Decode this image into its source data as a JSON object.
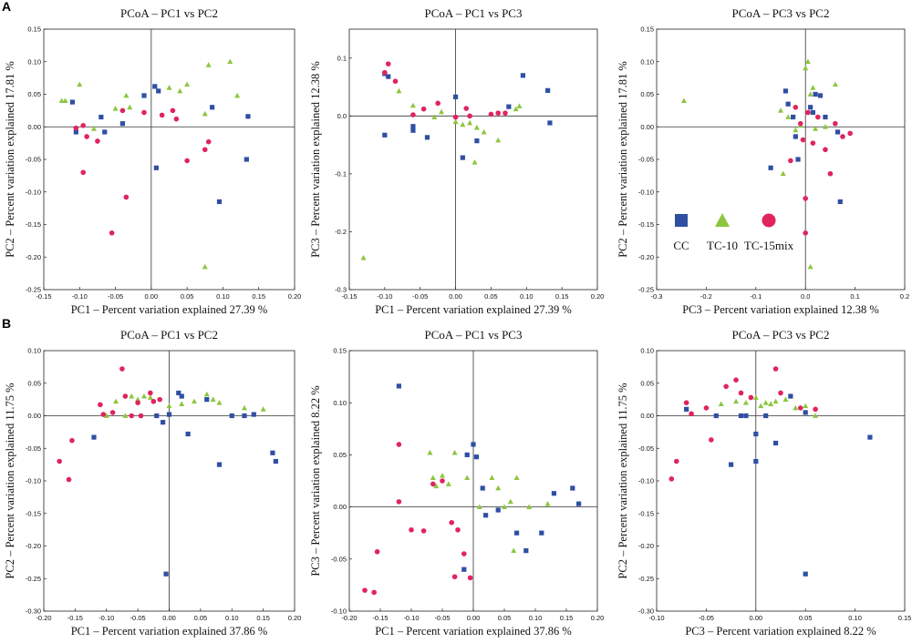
{
  "colors": {
    "CC": "#2f4fa3",
    "TC-10": "#8cc63f",
    "TC-15mix": "#e0245e"
  },
  "chart_data": [
    {
      "type": "scatter",
      "panel": "A",
      "title": "PCoA – PC1 vs PC2",
      "xlabel": "PC1 – Percent variation explained 27.39 %",
      "ylabel": "PC2 – Percent variation explained 17.81 %",
      "xlim": [
        -0.15,
        0.2
      ],
      "ylim": [
        -0.25,
        0.15
      ],
      "xticks": [
        -0.15,
        -0.1,
        -0.05,
        0.0,
        0.05,
        0.1,
        0.15,
        0.2
      ],
      "yticks": [
        -0.25,
        -0.2,
        -0.15,
        -0.1,
        -0.05,
        0.0,
        0.05,
        0.1,
        0.15
      ],
      "xtick_labels": [
        "-0.15",
        "-0.10",
        "-0.05",
        "0.00",
        "0.05",
        "0.10",
        "0.15",
        "0.20"
      ],
      "ytick_labels": [
        "-0.25",
        "-0.20",
        "-0.15",
        "-0.10",
        "-0.05",
        "0.00",
        "0.05",
        "0.10",
        "0.15"
      ],
      "series": [
        {
          "name": "CC",
          "x": [
            -0.11,
            -0.105,
            -0.07,
            -0.065,
            -0.04,
            -0.01,
            0.005,
            0.01,
            0.007,
            0.085,
            0.095,
            0.135,
            0.133
          ],
          "y": [
            0.038,
            -0.008,
            0.015,
            -0.008,
            0.005,
            0.048,
            0.062,
            0.055,
            -0.063,
            0.03,
            -0.115,
            0.016,
            -0.05
          ]
        },
        {
          "name": "TC-10",
          "x": [
            -0.125,
            -0.12,
            -0.1,
            -0.08,
            -0.05,
            -0.035,
            -0.03,
            0.025,
            0.04,
            0.05,
            0.075,
            0.08,
            0.11,
            0.12,
            0.075
          ],
          "y": [
            0.04,
            0.04,
            0.065,
            -0.003,
            0.028,
            0.048,
            0.03,
            0.06,
            0.055,
            0.065,
            0.02,
            0.095,
            0.1,
            0.048,
            -0.215
          ]
        },
        {
          "name": "TC-15mix",
          "x": [
            -0.105,
            -0.095,
            -0.09,
            -0.095,
            -0.075,
            -0.04,
            -0.055,
            -0.035,
            -0.01,
            0.015,
            0.03,
            0.035,
            0.05,
            0.075,
            0.08
          ],
          "y": [
            -0.002,
            0.002,
            -0.015,
            -0.07,
            -0.022,
            0.025,
            -0.163,
            -0.108,
            0.022,
            0.018,
            0.025,
            0.012,
            -0.052,
            -0.035,
            -0.023
          ]
        }
      ]
    },
    {
      "type": "scatter",
      "panel": "A",
      "title": "PCoA – PC1 vs PC3",
      "xlabel": "PC1 – Percent variation explained 27.39 %",
      "ylabel": "PC3 – Percent variation explained 12.38 %",
      "xlim": [
        -0.15,
        0.2
      ],
      "ylim": [
        -0.3,
        0.15
      ],
      "xticks": [
        -0.15,
        -0.1,
        -0.05,
        0.0,
        0.05,
        0.1,
        0.15,
        0.2
      ],
      "yticks": [
        -0.3,
        -0.2,
        -0.1,
        0.0,
        0.1
      ],
      "xtick_labels": [
        "-0.15",
        "-0.10",
        "-0.05",
        "0.00",
        "0.05",
        "0.10",
        "0.15",
        "0.20"
      ],
      "ytick_labels": [
        "-0.3",
        "-0.2",
        "-0.1",
        "0.0",
        "0.1"
      ],
      "series": [
        {
          "name": "CC",
          "x": [
            -0.1,
            -0.095,
            -0.06,
            -0.06,
            -0.04,
            0.0,
            0.01,
            0.03,
            0.075,
            0.095,
            0.13,
            0.133,
            -0.1
          ],
          "y": [
            0.073,
            0.068,
            -0.018,
            -0.025,
            -0.037,
            0.033,
            -0.072,
            -0.043,
            0.016,
            0.07,
            0.044,
            -0.012,
            -0.033
          ]
        },
        {
          "name": "TC-10",
          "x": [
            -0.13,
            -0.08,
            -0.06,
            -0.03,
            -0.02,
            0.0,
            0.01,
            0.02,
            0.03,
            0.04,
            0.06,
            0.085,
            0.09,
            0.027
          ],
          "y": [
            -0.245,
            0.043,
            0.018,
            -0.002,
            0.007,
            -0.01,
            -0.015,
            -0.012,
            -0.02,
            -0.028,
            -0.042,
            0.012,
            0.017,
            -0.08
          ]
        },
        {
          "name": "TC-15mix",
          "x": [
            -0.1,
            -0.095,
            -0.085,
            -0.06,
            -0.045,
            -0.025,
            0.0,
            0.015,
            0.02,
            0.05,
            0.06,
            0.07
          ],
          "y": [
            0.075,
            0.09,
            0.06,
            0.002,
            0.012,
            0.022,
            -0.002,
            0.013,
            0.0,
            0.003,
            0.005,
            0.005
          ]
        }
      ]
    },
    {
      "type": "scatter",
      "panel": "A",
      "title": "PCoA – PC3 vs PC2",
      "xlabel": "PC3 – Percent variation explained 12.38 %",
      "ylabel": "PC2 – Percent variation explained 17.81 %",
      "xlim": [
        -0.3,
        0.2
      ],
      "ylim": [
        -0.25,
        0.15
      ],
      "xticks": [
        -0.3,
        -0.2,
        -0.1,
        0.0,
        0.1,
        0.2
      ],
      "yticks": [
        -0.25,
        -0.2,
        -0.15,
        -0.1,
        -0.05,
        0.0,
        0.05,
        0.1,
        0.15
      ],
      "xtick_labels": [
        "-0.3",
        "-0.2",
        "-0.1",
        "0.0",
        "0.1",
        "0.2"
      ],
      "ytick_labels": [
        "-0.25",
        "-0.20",
        "-0.15",
        "-0.10",
        "-0.05",
        "0.00",
        "0.05",
        "0.10",
        "0.15"
      ],
      "series": [
        {
          "name": "CC",
          "x": [
            -0.07,
            -0.04,
            -0.035,
            -0.025,
            -0.02,
            -0.015,
            0.01,
            0.015,
            0.02,
            0.03,
            0.04,
            0.065,
            0.07
          ],
          "y": [
            -0.063,
            0.055,
            0.035,
            0.015,
            -0.015,
            -0.05,
            0.03,
            0.022,
            0.05,
            0.048,
            0.015,
            -0.008,
            -0.115
          ]
        },
        {
          "name": "TC-10",
          "x": [
            -0.245,
            -0.05,
            -0.035,
            -0.02,
            -0.01,
            0.0,
            0.005,
            0.01,
            0.015,
            0.02,
            0.04,
            0.06,
            0.01,
            -0.045
          ],
          "y": [
            0.04,
            0.025,
            0.015,
            -0.005,
            0.002,
            0.09,
            0.1,
            0.05,
            0.06,
            -0.003,
            0.0,
            0.065,
            -0.215,
            -0.072
          ]
        },
        {
          "name": "TC-15mix",
          "x": [
            -0.03,
            -0.02,
            -0.01,
            -0.005,
            0.0,
            0.005,
            0.015,
            0.025,
            0.04,
            0.05,
            0.06,
            0.075,
            0.09,
            0.0
          ],
          "y": [
            -0.052,
            0.03,
            0.005,
            -0.02,
            -0.11,
            0.022,
            -0.025,
            0.015,
            -0.035,
            -0.072,
            0.005,
            -0.015,
            -0.01,
            -0.163
          ]
        }
      ],
      "legend": {
        "entries": [
          "CC",
          "TC-10",
          "TC-15mix"
        ],
        "placement": "bottom-left"
      }
    },
    {
      "type": "scatter",
      "panel": "B",
      "title": "PCoA – PC1 vs PC2",
      "xlabel": "PC1 – Percent variation explained 37.86 %",
      "ylabel": "PC2 – Percent variation explained 11.75 %",
      "xlim": [
        -0.2,
        0.2
      ],
      "ylim": [
        -0.3,
        0.1
      ],
      "xticks": [
        -0.2,
        -0.15,
        -0.1,
        -0.05,
        0.0,
        0.05,
        0.1,
        0.15,
        0.2
      ],
      "yticks": [
        -0.3,
        -0.25,
        -0.2,
        -0.15,
        -0.1,
        -0.05,
        0.0,
        0.05,
        0.1
      ],
      "xtick_labels": [
        "-0.20",
        "-0.15",
        "-0.10",
        "-0.05",
        "0.00",
        "0.05",
        "0.10",
        "0.15",
        "0.20"
      ],
      "ytick_labels": [
        "-0.30",
        "-0.25",
        "-0.20",
        "-0.15",
        "-0.10",
        "-0.05",
        "0.00",
        "0.05",
        "0.10"
      ],
      "series": [
        {
          "name": "CC",
          "x": [
            -0.12,
            -0.02,
            -0.01,
            0.0,
            0.015,
            0.02,
            0.03,
            0.06,
            0.08,
            0.1,
            0.12,
            0.135,
            0.165,
            0.17,
            -0.005
          ],
          "y": [
            -0.033,
            0.0,
            -0.01,
            0.002,
            0.035,
            0.03,
            -0.028,
            0.025,
            -0.075,
            0.0,
            0.0,
            0.002,
            -0.057,
            -0.07,
            -0.243
          ]
        },
        {
          "name": "TC-10",
          "x": [
            -0.1,
            -0.085,
            -0.06,
            -0.05,
            -0.04,
            -0.03,
            0.0,
            0.02,
            0.04,
            0.06,
            0.07,
            0.08,
            0.12,
            0.15,
            -0.07
          ],
          "y": [
            0.0,
            0.022,
            0.03,
            0.025,
            0.03,
            0.028,
            0.015,
            0.018,
            0.022,
            0.033,
            0.025,
            0.02,
            0.012,
            0.01,
            0.0
          ]
        },
        {
          "name": "TC-15mix",
          "x": [
            -0.175,
            -0.16,
            -0.155,
            -0.11,
            -0.105,
            -0.09,
            -0.075,
            -0.07,
            -0.06,
            -0.05,
            -0.03,
            -0.025,
            -0.015,
            -0.045
          ],
          "y": [
            -0.07,
            -0.098,
            -0.038,
            0.017,
            0.002,
            0.005,
            0.072,
            0.03,
            0.0,
            0.02,
            0.035,
            0.022,
            0.025,
            0.0
          ]
        }
      ]
    },
    {
      "type": "scatter",
      "panel": "B",
      "title": "PCoA – PC1 vs PC3",
      "xlabel": "PC1 – Percent variation explained 37.86 %",
      "ylabel": "PC3 – Percent variation explained 8.22 %",
      "xlim": [
        -0.2,
        0.2
      ],
      "ylim": [
        -0.1,
        0.15
      ],
      "xticks": [
        -0.2,
        -0.15,
        -0.1,
        -0.05,
        0.0,
        0.05,
        0.1,
        0.15,
        0.2
      ],
      "yticks": [
        -0.1,
        -0.05,
        0.0,
        0.05,
        0.1,
        0.15
      ],
      "xtick_labels": [
        "-0.20",
        "-0.15",
        "-0.10",
        "-0.05",
        "0.00",
        "0.05",
        "0.10",
        "0.15",
        "0.20"
      ],
      "ytick_labels": [
        "-0.10",
        "-0.05",
        "0.00",
        "0.05",
        "0.10",
        "0.15"
      ],
      "series": [
        {
          "name": "CC",
          "x": [
            -0.12,
            -0.01,
            0.0,
            0.005,
            0.015,
            0.02,
            0.04,
            0.07,
            0.085,
            0.11,
            0.13,
            0.16,
            0.17,
            -0.015
          ],
          "y": [
            0.116,
            0.05,
            0.06,
            0.048,
            0.018,
            -0.008,
            -0.003,
            -0.025,
            -0.042,
            -0.025,
            0.013,
            0.018,
            0.003,
            -0.06
          ]
        },
        {
          "name": "TC-10",
          "x": [
            -0.07,
            -0.065,
            -0.05,
            -0.04,
            -0.06,
            -0.03,
            -0.01,
            0.01,
            0.03,
            0.04,
            0.05,
            0.06,
            0.07,
            0.09,
            0.12,
            0.065
          ],
          "y": [
            0.052,
            0.028,
            0.03,
            0.022,
            0.02,
            0.052,
            0.028,
            0.0,
            0.028,
            0.018,
            0.0,
            0.005,
            0.028,
            0.0,
            0.003,
            -0.042
          ]
        },
        {
          "name": "TC-15mix",
          "x": [
            -0.175,
            -0.16,
            -0.155,
            -0.12,
            -0.12,
            -0.1,
            -0.08,
            -0.065,
            -0.05,
            -0.035,
            -0.025,
            -0.015,
            -0.005,
            -0.03
          ],
          "y": [
            -0.08,
            -0.082,
            -0.043,
            0.06,
            0.005,
            -0.022,
            -0.023,
            0.022,
            0.025,
            -0.015,
            -0.022,
            -0.045,
            -0.068,
            -0.067
          ]
        }
      ]
    },
    {
      "type": "scatter",
      "panel": "B",
      "title": "PCoA – PC3 vs PC2",
      "xlabel": "PC3 – Percent variation explained 8.22 %",
      "ylabel": "PC2 – Percent variation explained 11.75 %",
      "xlim": [
        -0.1,
        0.15
      ],
      "ylim": [
        -0.3,
        0.1
      ],
      "xticks": [
        -0.1,
        -0.05,
        0.0,
        0.05,
        0.1,
        0.15
      ],
      "yticks": [
        -0.3,
        -0.25,
        -0.2,
        -0.15,
        -0.1,
        -0.05,
        0.0,
        0.05,
        0.1
      ],
      "xtick_labels": [
        "-0.10",
        "-0.05",
        "0.00",
        "0.05",
        "0.10",
        "0.15"
      ],
      "ytick_labels": [
        "-0.30",
        "-0.25",
        "-0.20",
        "-0.15",
        "-0.10",
        "-0.05",
        "0.00",
        "0.05",
        "0.10"
      ],
      "series": [
        {
          "name": "CC",
          "x": [
            -0.07,
            -0.04,
            -0.025,
            -0.015,
            -0.01,
            0.0,
            0.01,
            0.02,
            0.035,
            0.05,
            0.115,
            0.05,
            0.0
          ],
          "y": [
            0.01,
            0.0,
            -0.075,
            0.0,
            0.0,
            -0.07,
            0.0,
            -0.042,
            0.03,
            0.005,
            -0.033,
            -0.243,
            -0.028
          ]
        },
        {
          "name": "TC-10",
          "x": [
            -0.035,
            -0.02,
            -0.01,
            0.0,
            0.005,
            0.01,
            0.015,
            0.02,
            0.03,
            0.04,
            0.05,
            0.06
          ],
          "y": [
            0.018,
            0.022,
            0.02,
            0.028,
            0.015,
            0.02,
            0.018,
            0.022,
            0.025,
            0.012,
            0.015,
            0.0
          ]
        },
        {
          "name": "TC-15mix",
          "x": [
            -0.085,
            -0.08,
            -0.07,
            -0.065,
            -0.05,
            -0.045,
            -0.02,
            -0.015,
            -0.005,
            0.02,
            0.025,
            0.045,
            0.06,
            -0.03
          ],
          "y": [
            -0.097,
            -0.07,
            0.02,
            0.003,
            0.012,
            -0.037,
            0.055,
            0.035,
            0.028,
            0.072,
            0.035,
            0.012,
            0.01,
            0.045
          ]
        }
      ]
    }
  ],
  "panel_labels": [
    "A",
    "B"
  ]
}
